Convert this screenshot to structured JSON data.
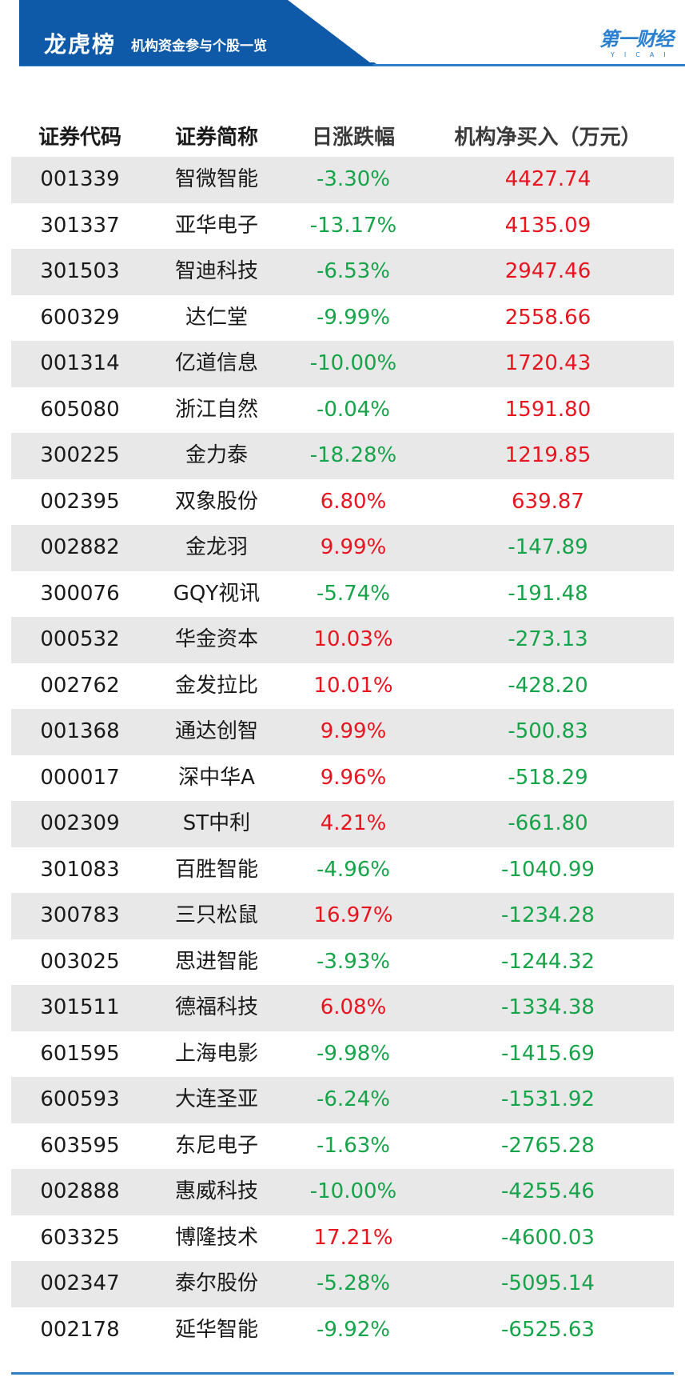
{
  "header": {
    "title": "龙虎榜",
    "subtitle": "机构资金参与个股一览",
    "logo_text": "第一财经",
    "logo_sub": "YICAI"
  },
  "colors": {
    "banner_dark": "#0e5aa8",
    "banner_light": "#2f7fc8",
    "up": "#e8141e",
    "down": "#17a34a",
    "row_shade": "#e8e8e8"
  },
  "table": {
    "columns": [
      "证券代码",
      "证券简称",
      "日涨跌幅",
      "机构净买入（万元）"
    ],
    "rows": [
      {
        "code": "001339",
        "name": "智微智能",
        "change": "-3.30%",
        "net": "4427.74"
      },
      {
        "code": "301337",
        "name": "亚华电子",
        "change": "-13.17%",
        "net": "4135.09"
      },
      {
        "code": "301503",
        "name": "智迪科技",
        "change": "-6.53%",
        "net": "2947.46"
      },
      {
        "code": "600329",
        "name": "达仁堂",
        "change": "-9.99%",
        "net": "2558.66"
      },
      {
        "code": "001314",
        "name": "亿道信息",
        "change": "-10.00%",
        "net": "1720.43"
      },
      {
        "code": "605080",
        "name": "浙江自然",
        "change": "-0.04%",
        "net": "1591.80"
      },
      {
        "code": "300225",
        "name": "金力泰",
        "change": "-18.28%",
        "net": "1219.85"
      },
      {
        "code": "002395",
        "name": "双象股份",
        "change": "6.80%",
        "net": "639.87"
      },
      {
        "code": "002882",
        "name": "金龙羽",
        "change": "9.99%",
        "net": "-147.89"
      },
      {
        "code": "300076",
        "name": "GQY视讯",
        "change": "-5.74%",
        "net": "-191.48"
      },
      {
        "code": "000532",
        "name": "华金资本",
        "change": "10.03%",
        "net": "-273.13"
      },
      {
        "code": "002762",
        "name": "金发拉比",
        "change": "10.01%",
        "net": "-428.20"
      },
      {
        "code": "001368",
        "name": "通达创智",
        "change": "9.99%",
        "net": "-500.83"
      },
      {
        "code": "000017",
        "name": "深中华A",
        "change": "9.96%",
        "net": "-518.29"
      },
      {
        "code": "002309",
        "name": "ST中利",
        "change": "4.21%",
        "net": "-661.80"
      },
      {
        "code": "301083",
        "name": "百胜智能",
        "change": "-4.96%",
        "net": "-1040.99"
      },
      {
        "code": "300783",
        "name": "三只松鼠",
        "change": "16.97%",
        "net": "-1234.28"
      },
      {
        "code": "003025",
        "name": "思进智能",
        "change": "-3.93%",
        "net": "-1244.32"
      },
      {
        "code": "301511",
        "name": "德福科技",
        "change": "6.08%",
        "net": "-1334.38"
      },
      {
        "code": "601595",
        "name": "上海电影",
        "change": "-9.98%",
        "net": "-1415.69"
      },
      {
        "code": "600593",
        "name": "大连圣亚",
        "change": "-6.24%",
        "net": "-1531.92"
      },
      {
        "code": "603595",
        "name": "东尼电子",
        "change": "-1.63%",
        "net": "-2765.28"
      },
      {
        "code": "002888",
        "name": "惠威科技",
        "change": "-10.00%",
        "net": "-4255.46"
      },
      {
        "code": "603325",
        "name": "博隆技术",
        "change": "17.21%",
        "net": "-4600.03"
      },
      {
        "code": "002347",
        "name": "泰尔股份",
        "change": "-5.28%",
        "net": "-5095.14"
      },
      {
        "code": "002178",
        "name": "延华智能",
        "change": "-9.92%",
        "net": "-6525.63"
      }
    ]
  }
}
